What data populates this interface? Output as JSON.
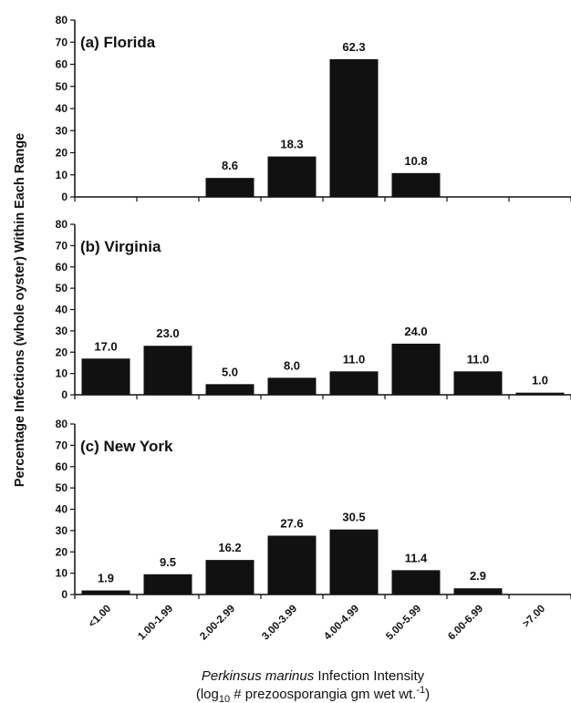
{
  "chart_data": {
    "type": "bar",
    "categories": [
      "<1.00",
      "1.00-1.99",
      "2.00-2.99",
      "3.00-3.99",
      "4.00-4.99",
      "5.00-5.99",
      "6.00-6.99",
      ">7.00"
    ],
    "ylim": [
      0,
      80
    ],
    "yticks": [
      0,
      10,
      20,
      30,
      40,
      50,
      60,
      70,
      80
    ],
    "ylabel": "Percentage Infections (whole oyster) Within Each Range",
    "xlabel_italic": "Perkinsus marinus",
    "xlabel_rest": " Infection Intensity",
    "xlabel_line2_pre": "(log",
    "xlabel_line2_sub": "10",
    "xlabel_line2_mid": " # prezoosporangia gm wet wt.",
    "xlabel_line2_sup": "-1",
    "xlabel_line2_post": ")",
    "panels": [
      {
        "title": "(a) Florida",
        "values": [
          null,
          null,
          8.6,
          18.3,
          62.3,
          10.8,
          null,
          null
        ],
        "labels": [
          "",
          "",
          "8.6",
          "18.3",
          "62.3",
          "10.8",
          "",
          ""
        ]
      },
      {
        "title": "(b) Virginia",
        "values": [
          17.0,
          23.0,
          5.0,
          8.0,
          11.0,
          24.0,
          11.0,
          1.0
        ],
        "labels": [
          "17.0",
          "23.0",
          "5.0",
          "8.0",
          "11.0",
          "24.0",
          "11.0",
          "1.0"
        ]
      },
      {
        "title": "(c) New York",
        "values": [
          1.9,
          9.5,
          16.2,
          27.6,
          30.5,
          11.4,
          2.9,
          null
        ],
        "labels": [
          "1.9",
          "9.5",
          "16.2",
          "27.6",
          "30.5",
          "11.4",
          "2.9",
          ""
        ]
      }
    ]
  },
  "colors": {
    "bar": "#111111",
    "axis": "#111111"
  }
}
